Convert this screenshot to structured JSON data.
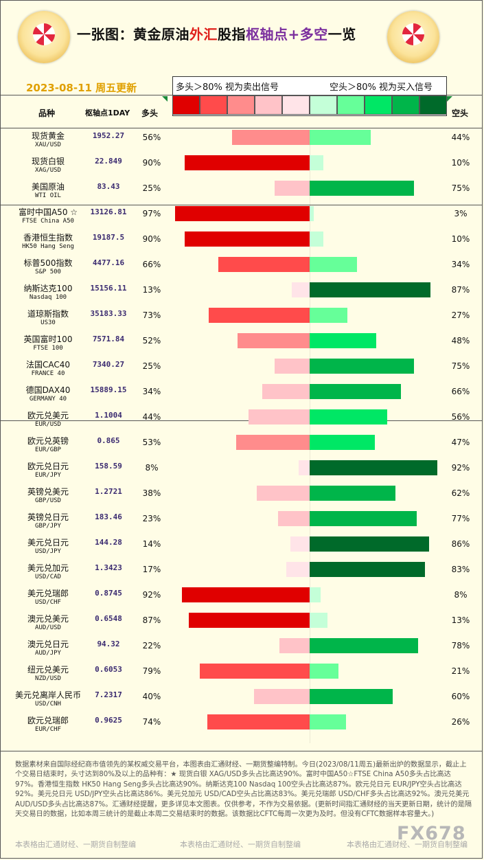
{
  "header": {
    "title_part1": "一张图：黄金原油",
    "title_part2": "外汇",
    "title_part3": "股指",
    "title_part4": "枢轴点+多空",
    "title_part5": "一览",
    "date": "2023-08-11 周五更新",
    "legend_left": "多头＞80% 视为卖出信号",
    "legend_right": "空头＞80% 视为买入信号"
  },
  "columns": {
    "name": "品种",
    "pivot": "枢轴点1DAY",
    "long": "多头",
    "short": "空头"
  },
  "colors": {
    "long_scale": [
      "#e00000",
      "#ff4b4b",
      "#ff8c8c",
      "#ffc3c8",
      "#ffe4e8"
    ],
    "short_scale": [
      "#c4ffd8",
      "#66ff99",
      "#00e765",
      "#00b54a",
      "#006a2a"
    ]
  },
  "chart_data": {
    "type": "bar",
    "categories": [
      {
        "cn": "现货黄金",
        "en": "XAU/USD"
      },
      {
        "cn": "现货白银",
        "en": "XAG/USD"
      },
      {
        "cn": "美国原油",
        "en": "WTI OIL"
      },
      {
        "cn": "富时中国A50 ☆",
        "en": "FTSE China A50"
      },
      {
        "cn": "香港恒生指数",
        "en": "HK50 Hang Seng"
      },
      {
        "cn": "标普500指数",
        "en": "S&P 500"
      },
      {
        "cn": "纳斯达克100",
        "en": "Nasdaq 100"
      },
      {
        "cn": "道琼斯指数",
        "en": "US30"
      },
      {
        "cn": "英国富时100",
        "en": "FTSE 100"
      },
      {
        "cn": "法国CAC40",
        "en": "FRANCE 40"
      },
      {
        "cn": "德国DAX40",
        "en": "GERMANY 40"
      },
      {
        "cn": "欧元兑美元",
        "en": "EUR/USD"
      },
      {
        "cn": "欧元兑英镑",
        "en": "EUR/GBP"
      },
      {
        "cn": "欧元兑日元",
        "en": "EUR/JPY"
      },
      {
        "cn": "英镑兑美元",
        "en": "GBP/USD"
      },
      {
        "cn": "英镑兑日元",
        "en": "GBP/JPY"
      },
      {
        "cn": "美元兑日元",
        "en": "USD/JPY"
      },
      {
        "cn": "美元兑加元",
        "en": "USD/CAD"
      },
      {
        "cn": "美元兑瑞郎",
        "en": "USD/CHF"
      },
      {
        "cn": "澳元兑美元",
        "en": "AUD/USD"
      },
      {
        "cn": "澳元兑日元",
        "en": "AUD/JPY"
      },
      {
        "cn": "纽元兑美元",
        "en": "NZD/USD"
      },
      {
        "cn": "美元兑离岸人民币",
        "en": "USD/CNH"
      },
      {
        "cn": "欧元兑瑞郎",
        "en": "EUR/CHF"
      }
    ],
    "pivot": [
      "1952.27",
      "22.849",
      "83.43",
      "13126.81",
      "19187.5",
      "4477.16",
      "15156.11",
      "35183.33",
      "7571.84",
      "7340.27",
      "15889.15",
      "1.1004",
      "0.865",
      "158.59",
      "1.2721",
      "183.46",
      "144.28",
      "1.3423",
      "0.8745",
      "0.6548",
      "94.32",
      "0.6053",
      "7.2317",
      "0.9625"
    ],
    "series": [
      {
        "name": "多头",
        "values": [
          56,
          90,
          25,
          97,
          90,
          66,
          13,
          73,
          52,
          25,
          34,
          44,
          53,
          8,
          38,
          23,
          14,
          17,
          92,
          87,
          22,
          79,
          40,
          74
        ]
      },
      {
        "name": "空头",
        "values": [
          44,
          10,
          75,
          3,
          10,
          34,
          87,
          27,
          48,
          75,
          66,
          56,
          47,
          92,
          62,
          77,
          86,
          83,
          8,
          13,
          78,
          21,
          60,
          26
        ]
      }
    ],
    "ylim": [
      0,
      100
    ]
  },
  "note": "数据素材来自国际经纪商市值领先的某权威交易平台，本图表由汇通财经、一期货整编特制。今日(2023/08/11周五)最新出炉的数据显示，截止上个交易日结束时，头寸达到80%及以上的品种有：★ 现货白银 XAG/USD多头占比高达90%。富时中国A50☆FTSE China A50多头占比高达97%。香港恒生指数 HK50 Hang Seng多头占比高达90%。纳斯达克100 Nasdaq 100空头占比高达87%。欧元兑日元 EUR/JPY空头占比高达92%。美元兑日元 USD/JPY空头占比高达86%。美元兑加元 USD/CAD空头占比高达83%。美元兑瑞郎 USD/CHF多头占比高达92%。澳元兑美元 AUD/USD多头占比高达87%。汇通财经提醒，更多详见本文图表。仅供参考，不作为交易依据。(更新时间指汇通财经的当天更新日期，统计的是隔天交易日的数据，比如本周三统计的是截止本周二交易结束时的数据。该数据比CFTC每周一次更为及时。但没有CFTC数据样本容量大。)",
  "footer": [
    "本表格由汇通财经、一期货自制整编",
    "本表格由汇通财经、一期货自制整编",
    "本表格由汇通财经、一期货自制整编"
  ],
  "watermark": "FX678"
}
